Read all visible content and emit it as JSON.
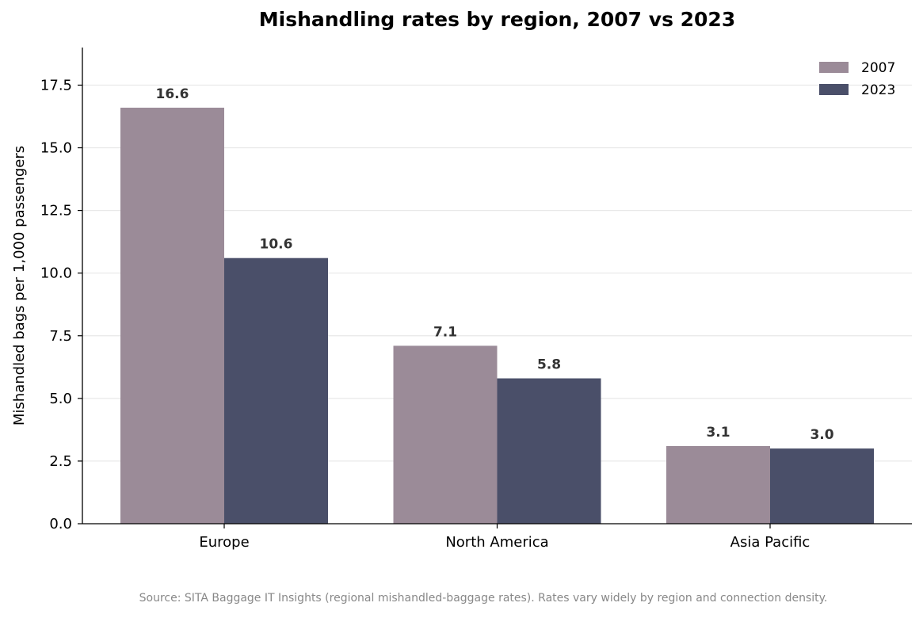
{
  "chart_data": {
    "type": "bar",
    "title": "Mishandling rates by region, 2007 vs 2023",
    "ylabel": "Mishandled bags per 1,000 passengers",
    "xlabel": "",
    "categories": [
      "Europe",
      "North America",
      "Asia Pacific"
    ],
    "series": [
      {
        "name": "2007",
        "values": [
          16.6,
          7.1,
          3.1
        ],
        "color": "#9b8b98"
      },
      {
        "name": "2023",
        "values": [
          10.6,
          5.8,
          3.0
        ],
        "color": "#4a4f69"
      }
    ],
    "data_labels": [
      [
        "16.6",
        "7.1",
        "3.1"
      ],
      [
        "10.6",
        "5.8",
        "3.0"
      ]
    ],
    "ylim": [
      0,
      19
    ],
    "yticks": [
      0.0,
      2.5,
      5.0,
      7.5,
      10.0,
      12.5,
      15.0,
      17.5
    ],
    "ytick_labels": [
      "0.0",
      "2.5",
      "5.0",
      "7.5",
      "10.0",
      "12.5",
      "15.0",
      "17.5"
    ],
    "grid": "y",
    "legend_position": "top-right",
    "source_note": "Source: SITA Baggage IT Insights (regional mishandled-baggage rates). Rates vary widely by region and connection density."
  }
}
